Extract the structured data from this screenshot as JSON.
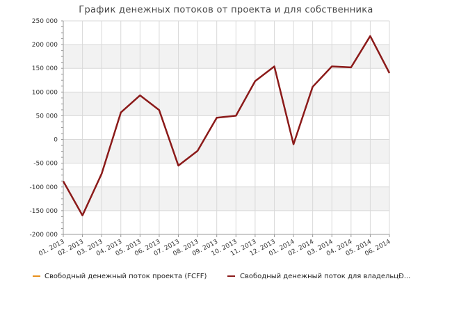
{
  "chart_data": {
    "type": "line",
    "title": "График денежных потоков от проекта и для собственника",
    "categories": [
      "01. 2013",
      "02. 2013",
      "03. 2013",
      "04. 2013",
      "05. 2013",
      "06. 2013",
      "07. 2013",
      "08. 2013",
      "09. 2013",
      "10. 2013",
      "11. 2013",
      "12. 2013",
      "01. 2014",
      "02. 2014",
      "03. 2014",
      "04. 2014",
      "05. 2014",
      "06. 2014"
    ],
    "yticks": [
      "250 000",
      "200 000",
      "150 000",
      "100 000",
      "50 000",
      "0",
      "-50 000",
      "-100 000",
      "-150 000",
      "-200 000"
    ],
    "ylim": [
      -200000,
      250000
    ],
    "grid": true,
    "legend_position": "bottom",
    "series": [
      {
        "name": "Свободный денежный поток проекта (FCFF)",
        "color": "#e8901c",
        "values": [
          -88000,
          -160000,
          -72000,
          57000,
          93000,
          62000,
          -55000,
          -24000,
          46000,
          50000,
          123000,
          154000,
          -10000,
          111000,
          154000,
          152000,
          218000,
          140000
        ]
      },
      {
        "name": "Свободный денежный поток для владельцÐ...",
        "color": "#8b1a1a",
        "values": [
          -88000,
          -160000,
          -72000,
          57000,
          93000,
          62000,
          -55000,
          -24000,
          46000,
          50000,
          123000,
          154000,
          -10000,
          111000,
          154000,
          152000,
          218000,
          140000
        ]
      }
    ]
  }
}
